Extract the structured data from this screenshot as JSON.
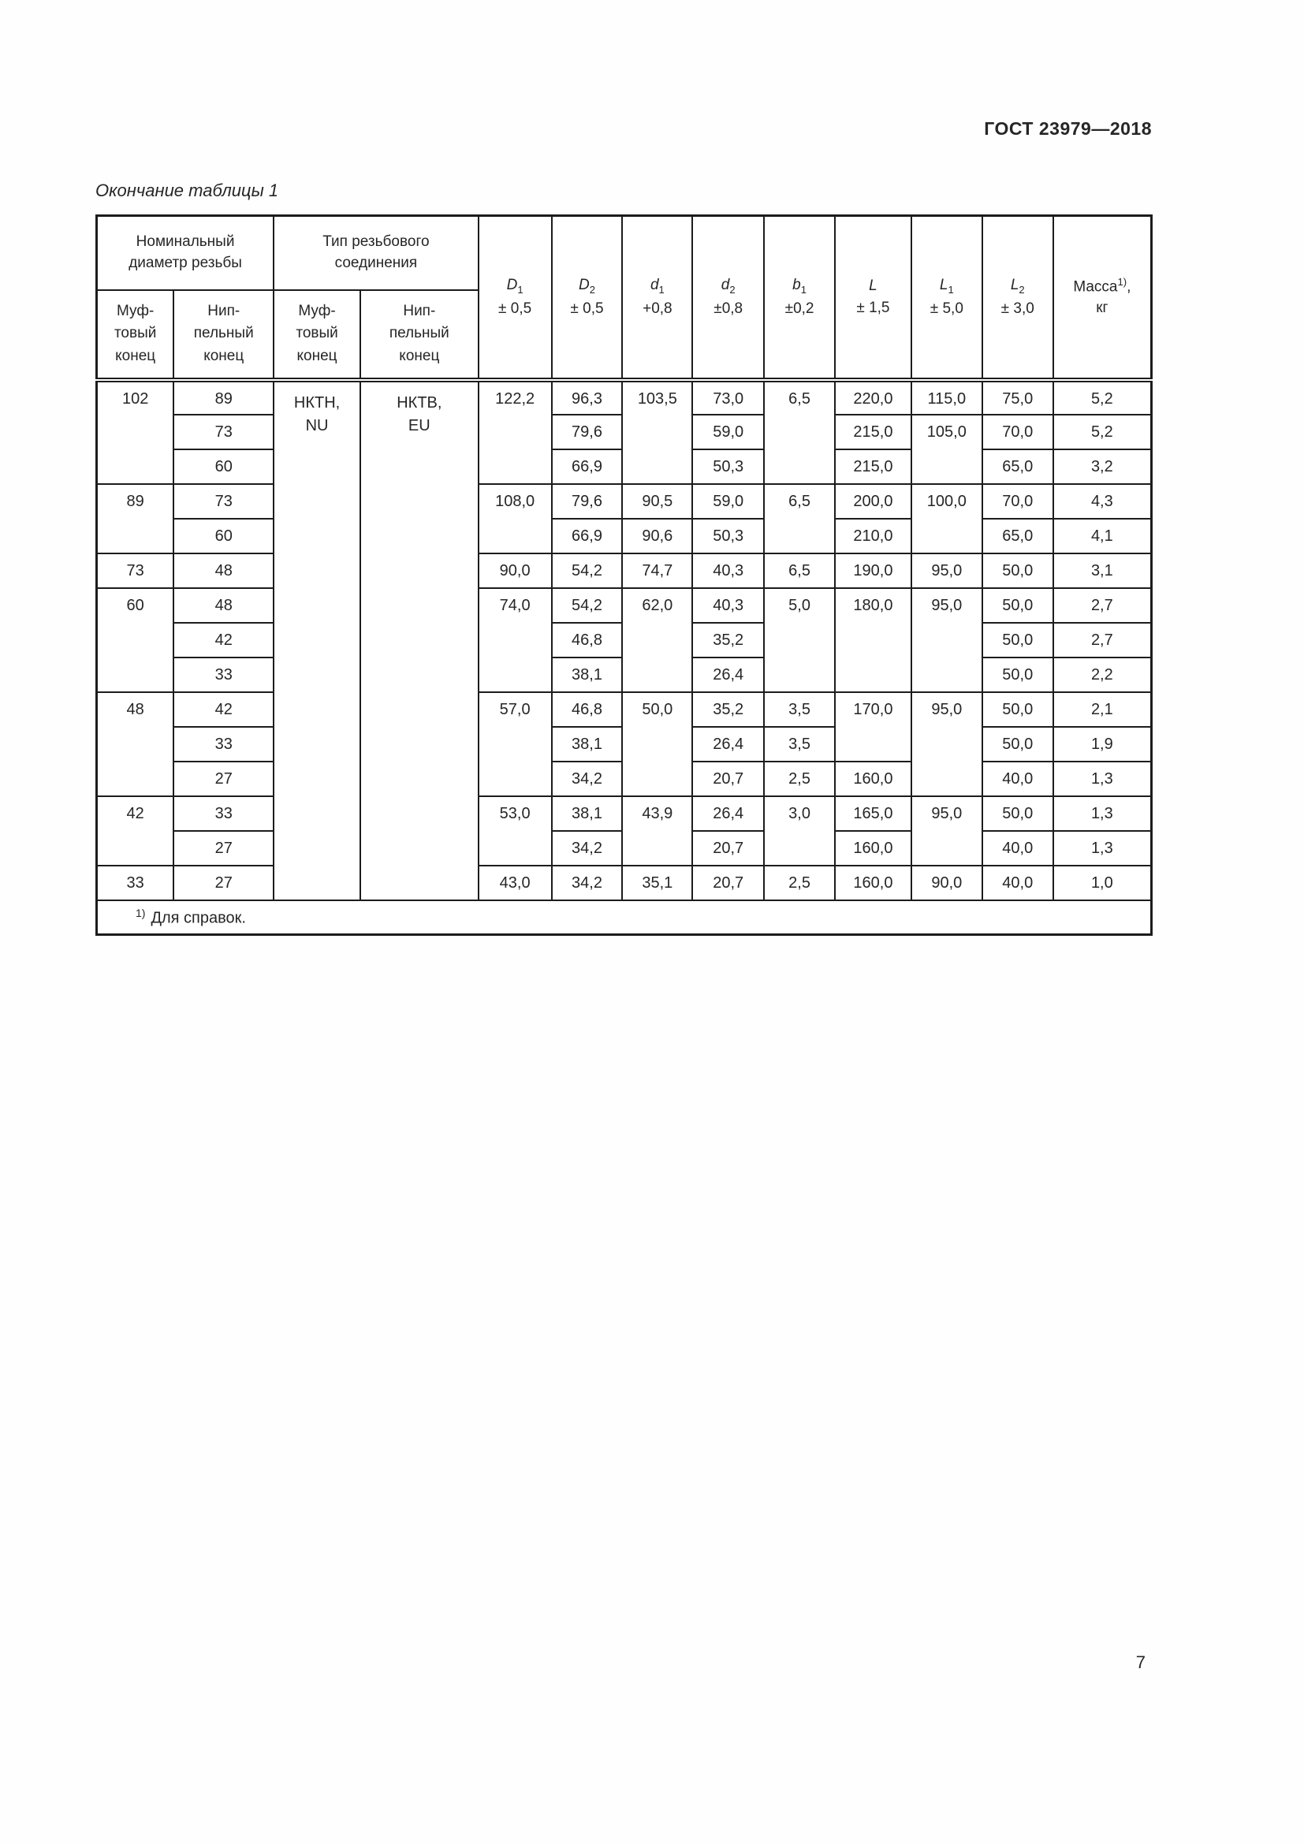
{
  "page": {
    "doc_code": "ГОСТ 23979—2018",
    "table_caption": "Окончание таблицы 1",
    "page_number": "7",
    "footnote_marker": "1)",
    "footnote_text": "Для справок."
  },
  "table": {
    "group1": "Номинальный\nдиаметр резьбы",
    "group2": "Тип резьбового\nсоединения",
    "sub_headers": [
      "Муф-\nтовый\nконец",
      "Нип-\nпельный\nконец",
      "Муф-\nтовый\nконец",
      "Нип-\nпельный\nконец"
    ],
    "measures": [
      {
        "sym": "D",
        "sub": "1",
        "tol": "± 0,5"
      },
      {
        "sym": "D",
        "sub": "2",
        "tol": "± 0,5"
      },
      {
        "sym": "d",
        "sub": "1",
        "tol": "+0,8"
      },
      {
        "sym": "d",
        "sub": "2",
        "tol": "±0,8"
      },
      {
        "sym": "b",
        "sub": "1",
        "tol": "±0,2"
      },
      {
        "sym": "L",
        "sub": "",
        "tol": "± 1,5"
      },
      {
        "sym": "L",
        "sub": "1",
        "tol": "± 5,0"
      },
      {
        "sym": "L",
        "sub": "2",
        "tol": "± 3,0"
      },
      {
        "label": "Масса",
        "sup": "1)",
        "comma": ",",
        "unit": "кг"
      }
    ],
    "rows": [
      [
        {
          "v": "102",
          "rs": 3
        },
        {
          "v": "89"
        },
        {
          "v": "НКТН,\nNU",
          "rs": 15,
          "cls": "type"
        },
        {
          "v": "НКТВ,\nEU",
          "rs": 15,
          "cls": "type"
        },
        {
          "v": "122,2",
          "rs": 3
        },
        {
          "v": "96,3"
        },
        {
          "v": "103,5",
          "rs": 3
        },
        {
          "v": "73,0"
        },
        {
          "v": "6,5",
          "rs": 3
        },
        {
          "v": "220,0"
        },
        {
          "v": "115,0"
        },
        {
          "v": "75,0"
        },
        {
          "v": "5,2"
        }
      ],
      [
        {
          "v": "73"
        },
        {
          "v": "79,6"
        },
        {
          "v": "59,0"
        },
        {
          "v": "215,0"
        },
        {
          "v": "105,0",
          "rs": 2
        },
        {
          "v": "70,0"
        },
        {
          "v": "5,2"
        }
      ],
      [
        {
          "v": "60"
        },
        {
          "v": "66,9"
        },
        {
          "v": "50,3"
        },
        {
          "v": "215,0"
        },
        {
          "v": "65,0"
        },
        {
          "v": "3,2"
        }
      ],
      [
        {
          "v": "89",
          "rs": 2
        },
        {
          "v": "73"
        },
        {
          "v": "108,0",
          "rs": 2
        },
        {
          "v": "79,6"
        },
        {
          "v": "90,5"
        },
        {
          "v": "59,0"
        },
        {
          "v": "6,5",
          "rs": 2
        },
        {
          "v": "200,0"
        },
        {
          "v": "100,0",
          "rs": 2
        },
        {
          "v": "70,0"
        },
        {
          "v": "4,3"
        }
      ],
      [
        {
          "v": "60"
        },
        {
          "v": "66,9"
        },
        {
          "v": "90,6"
        },
        {
          "v": "50,3"
        },
        {
          "v": "210,0"
        },
        {
          "v": "65,0"
        },
        {
          "v": "4,1"
        }
      ],
      [
        {
          "v": "73"
        },
        {
          "v": "48"
        },
        {
          "v": "90,0"
        },
        {
          "v": "54,2"
        },
        {
          "v": "74,7"
        },
        {
          "v": "40,3"
        },
        {
          "v": "6,5"
        },
        {
          "v": "190,0"
        },
        {
          "v": "95,0"
        },
        {
          "v": "50,0"
        },
        {
          "v": "3,1"
        }
      ],
      [
        {
          "v": "60",
          "rs": 3
        },
        {
          "v": "48"
        },
        {
          "v": "74,0",
          "rs": 3
        },
        {
          "v": "54,2"
        },
        {
          "v": "62,0",
          "rs": 3
        },
        {
          "v": "40,3"
        },
        {
          "v": "5,0",
          "rs": 3
        },
        {
          "v": "180,0",
          "rs": 3
        },
        {
          "v": "95,0",
          "rs": 3
        },
        {
          "v": "50,0"
        },
        {
          "v": "2,7"
        }
      ],
      [
        {
          "v": "42"
        },
        {
          "v": "46,8"
        },
        {
          "v": "35,2"
        },
        {
          "v": "50,0"
        },
        {
          "v": "2,7"
        }
      ],
      [
        {
          "v": "33"
        },
        {
          "v": "38,1"
        },
        {
          "v": "26,4"
        },
        {
          "v": "50,0"
        },
        {
          "v": "2,2"
        }
      ],
      [
        {
          "v": "48",
          "rs": 3
        },
        {
          "v": "42"
        },
        {
          "v": "57,0",
          "rs": 3
        },
        {
          "v": "46,8"
        },
        {
          "v": "50,0",
          "rs": 3
        },
        {
          "v": "35,2"
        },
        {
          "v": "3,5"
        },
        {
          "v": "170,0",
          "rs": 2
        },
        {
          "v": "95,0",
          "rs": 3
        },
        {
          "v": "50,0"
        },
        {
          "v": "2,1"
        }
      ],
      [
        {
          "v": "33"
        },
        {
          "v": "38,1"
        },
        {
          "v": "26,4"
        },
        {
          "v": "3,5"
        },
        {
          "v": "50,0"
        },
        {
          "v": "1,9"
        }
      ],
      [
        {
          "v": "27"
        },
        {
          "v": "34,2"
        },
        {
          "v": "20,7"
        },
        {
          "v": "2,5"
        },
        {
          "v": "160,0"
        },
        {
          "v": "40,0"
        },
        {
          "v": "1,3"
        }
      ],
      [
        {
          "v": "42",
          "rs": 2
        },
        {
          "v": "33"
        },
        {
          "v": "53,0",
          "rs": 2
        },
        {
          "v": "38,1"
        },
        {
          "v": "43,9",
          "rs": 2
        },
        {
          "v": "26,4"
        },
        {
          "v": "3,0",
          "rs": 2
        },
        {
          "v": "165,0"
        },
        {
          "v": "95,0",
          "rs": 2
        },
        {
          "v": "50,0"
        },
        {
          "v": "1,3"
        }
      ],
      [
        {
          "v": "27"
        },
        {
          "v": "34,2"
        },
        {
          "v": "20,7"
        },
        {
          "v": "160,0"
        },
        {
          "v": "40,0"
        },
        {
          "v": "1,3"
        }
      ],
      [
        {
          "v": "33"
        },
        {
          "v": "27"
        },
        {
          "v": "43,0"
        },
        {
          "v": "34,2"
        },
        {
          "v": "35,1"
        },
        {
          "v": "20,7"
        },
        {
          "v": "2,5"
        },
        {
          "v": "160,0"
        },
        {
          "v": "90,0"
        },
        {
          "v": "40,0"
        },
        {
          "v": "1,0"
        }
      ]
    ]
  }
}
